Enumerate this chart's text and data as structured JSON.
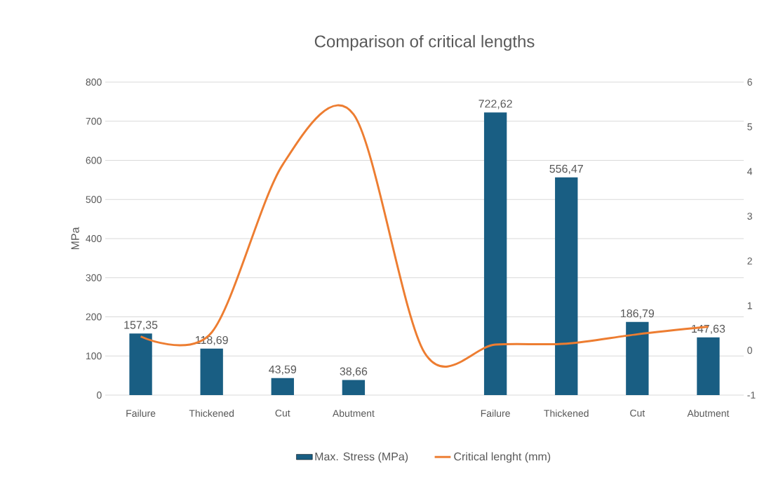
{
  "chart_data": {
    "type": "bar",
    "title": "Comparison of critical lengths",
    "ylabel": "MPa",
    "categories": [
      "Failure",
      "Thickened",
      "Cut",
      "Abutment",
      null,
      "Failure",
      "Thickened",
      "Cut",
      "Abutment"
    ],
    "series": [
      {
        "name": "Max. Stress (MPa)",
        "color": "#195e83",
        "values": [
          157.35,
          118.69,
          43.59,
          38.66,
          null,
          722.62,
          556.47,
          186.79,
          147.63
        ],
        "value_labels": [
          "157,35",
          "118,69",
          "43,59",
          "38,66",
          null,
          "722,62",
          "556,47",
          "186,79",
          "147,63"
        ]
      },
      {
        "name": "Critical lenght (mm)",
        "type": "line",
        "axis": "y2",
        "color": "#ed7d31",
        "values": [
          0.31,
          0.4,
          4.15,
          5.28,
          -0.05,
          0.13,
          0.15,
          0.36,
          0.53
        ]
      }
    ],
    "ylim": [
      0,
      800
    ],
    "yticks": [
      0,
      100,
      200,
      300,
      400,
      500,
      600,
      700,
      800
    ],
    "y2lim": [
      -1,
      6
    ],
    "y2ticks": [
      -1,
      0,
      1,
      2,
      3,
      4,
      5,
      6
    ],
    "grid": "y",
    "legend": "bottom"
  }
}
